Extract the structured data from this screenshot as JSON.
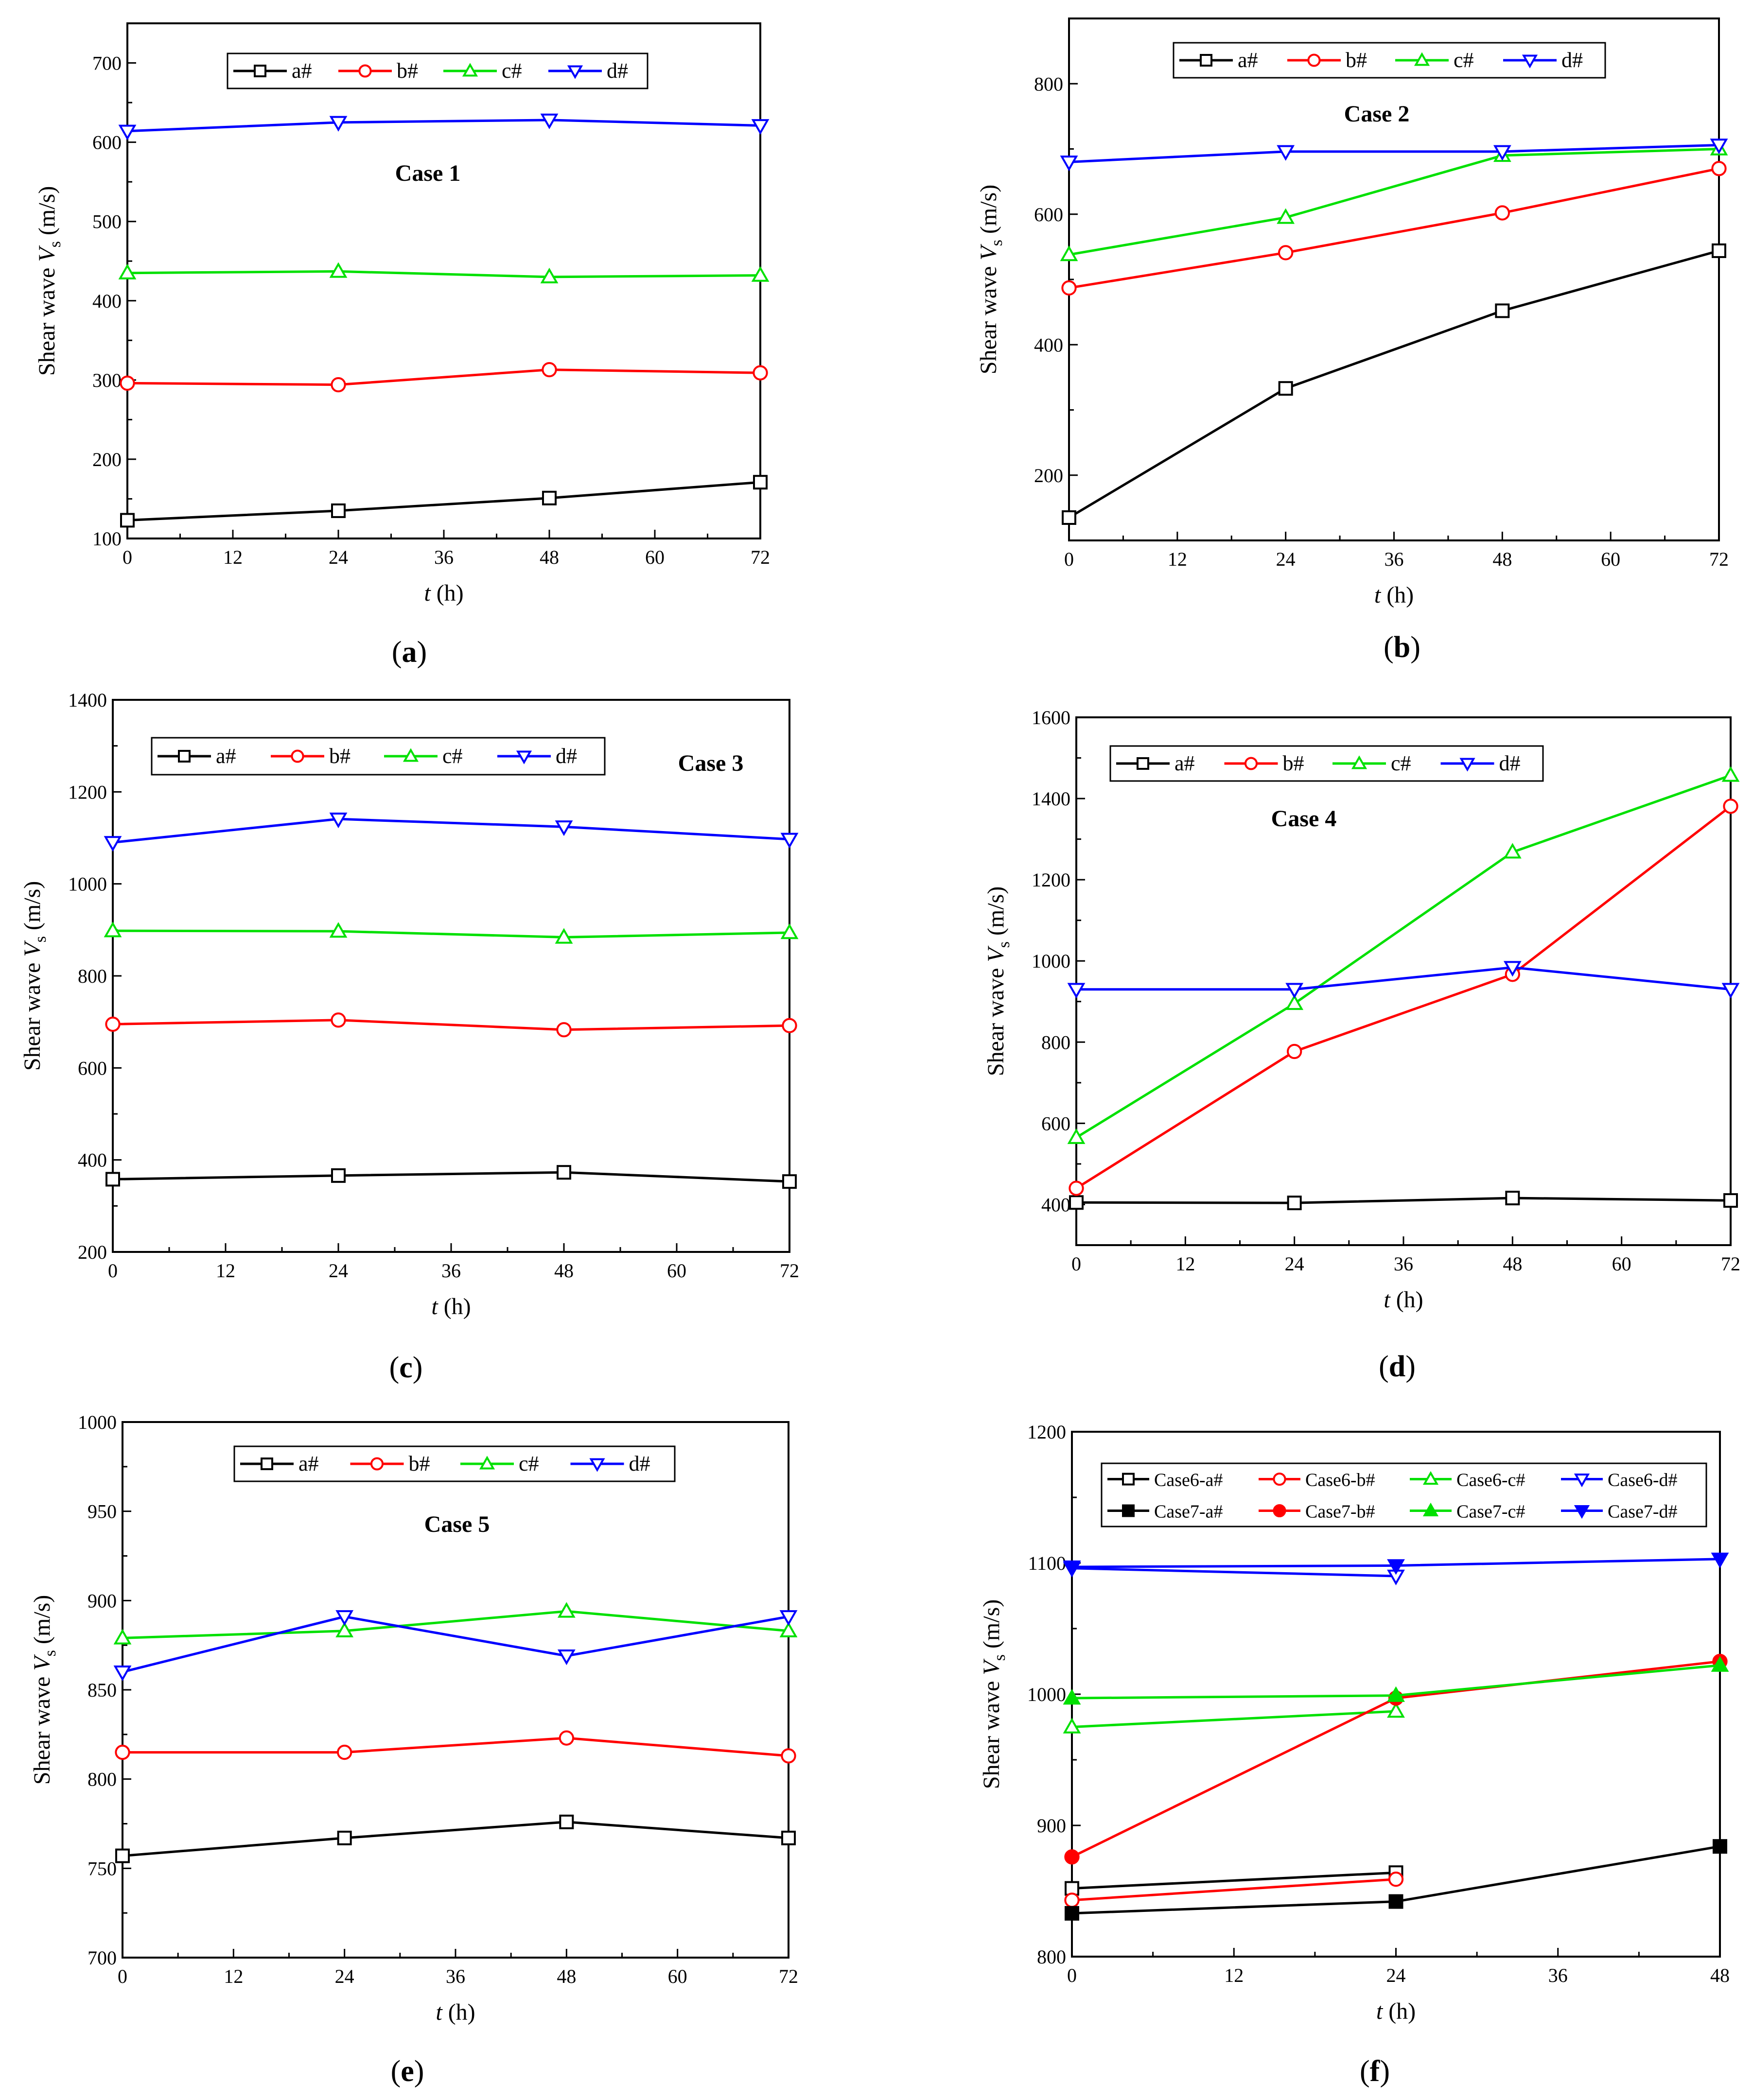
{
  "colors": {
    "a": "#000000",
    "b": "#ff0000",
    "c": "#00e000",
    "d": "#0000ff"
  },
  "charts": [
    {
      "id": "a",
      "panel_label": "a",
      "case_label": "Case 1",
      "xlabel_var": "t",
      "xlabel_unit": " (h)",
      "ylabel_main": "Shear wave ",
      "ylabel_var": "V",
      "ylabel_sub": "s",
      "ylabel_unit": " (m/s)",
      "xlim": [
        0,
        72
      ],
      "xticks": [
        0,
        12,
        24,
        36,
        48,
        60,
        72
      ],
      "ylim": [
        100,
        750
      ],
      "yticks": [
        100,
        200,
        300,
        400,
        500,
        600,
        700
      ],
      "x": [
        0,
        24,
        48,
        72
      ],
      "series": [
        {
          "name": "a#",
          "color": "#000000",
          "marker": "square",
          "values": [
            123,
            135,
            151,
            171
          ]
        },
        {
          "name": "b#",
          "color": "#ff0000",
          "marker": "circle",
          "values": [
            296,
            294,
            313,
            309
          ]
        },
        {
          "name": "c#",
          "color": "#00e000",
          "marker": "triangle-up",
          "values": [
            435,
            437,
            430,
            432
          ]
        },
        {
          "name": "d#",
          "color": "#0000ff",
          "marker": "triangle-down",
          "values": [
            614,
            625,
            628,
            621
          ]
        }
      ]
    },
    {
      "id": "b",
      "panel_label": "b",
      "case_label": "Case 2",
      "xlabel_var": "t",
      "xlabel_unit": " (h)",
      "ylabel_main": "Shear wave ",
      "ylabel_var": "V",
      "ylabel_sub": "s",
      "ylabel_unit": " (m/s)",
      "xlim": [
        0,
        72
      ],
      "xticks": [
        0,
        12,
        24,
        36,
        48,
        60,
        72
      ],
      "ylim": [
        100,
        900
      ],
      "yticks": [
        200,
        400,
        600,
        800
      ],
      "x": [
        0,
        24,
        48,
        72
      ],
      "series": [
        {
          "name": "a#",
          "color": "#000000",
          "marker": "square",
          "values": [
            135,
            333,
            452,
            544
          ]
        },
        {
          "name": "b#",
          "color": "#ff0000",
          "marker": "circle",
          "values": [
            487,
            541,
            602,
            670
          ]
        },
        {
          "name": "c#",
          "color": "#00e000",
          "marker": "triangle-up",
          "values": [
            538,
            595,
            690,
            700
          ]
        },
        {
          "name": "d#",
          "color": "#0000ff",
          "marker": "triangle-down",
          "values": [
            680,
            696,
            696,
            706
          ]
        }
      ]
    },
    {
      "id": "c",
      "panel_label": "c",
      "case_label": "Case 3",
      "xlabel_var": "t",
      "xlabel_unit": " (h)",
      "ylabel_main": "Shear wave ",
      "ylabel_var": "V",
      "ylabel_sub": "s",
      "ylabel_unit": " (m/s)",
      "xlim": [
        0,
        72
      ],
      "xticks": [
        0,
        12,
        24,
        36,
        48,
        60,
        72
      ],
      "ylim": [
        200,
        1400
      ],
      "yticks": [
        200,
        400,
        600,
        800,
        1000,
        1200,
        1400
      ],
      "x": [
        0,
        24,
        48,
        72
      ],
      "series": [
        {
          "name": "a#",
          "color": "#000000",
          "marker": "square",
          "values": [
            358,
            366,
            373,
            353
          ]
        },
        {
          "name": "b#",
          "color": "#ff0000",
          "marker": "circle",
          "values": [
            695,
            704,
            683,
            692
          ]
        },
        {
          "name": "c#",
          "color": "#00e000",
          "marker": "triangle-up",
          "values": [
            898,
            897,
            884,
            894
          ]
        },
        {
          "name": "d#",
          "color": "#0000ff",
          "marker": "triangle-down",
          "values": [
            1090,
            1141,
            1124,
            1097
          ]
        }
      ]
    },
    {
      "id": "d",
      "panel_label": "d",
      "case_label": "Case 4",
      "xlabel_var": "t",
      "xlabel_unit": " (h)",
      "ylabel_main": "Shear wave ",
      "ylabel_var": "V",
      "ylabel_sub": "s",
      "ylabel_unit": " (m/s)",
      "xlim": [
        0,
        72
      ],
      "xticks": [
        0,
        12,
        24,
        36,
        48,
        60,
        72
      ],
      "ylim": [
        300,
        1600
      ],
      "yticks": [
        400,
        600,
        800,
        1000,
        1200,
        1400,
        1600
      ],
      "x": [
        0,
        24,
        48,
        72
      ],
      "series": [
        {
          "name": "a#",
          "color": "#000000",
          "marker": "square",
          "values": [
            405,
            404,
            416,
            410
          ]
        },
        {
          "name": "b#",
          "color": "#ff0000",
          "marker": "circle",
          "values": [
            440,
            777,
            967,
            1381
          ]
        },
        {
          "name": "c#",
          "color": "#00e000",
          "marker": "triangle-up",
          "values": [
            565,
            895,
            1268,
            1457
          ]
        },
        {
          "name": "d#",
          "color": "#0000ff",
          "marker": "triangle-down",
          "values": [
            930,
            930,
            984,
            930
          ]
        }
      ]
    },
    {
      "id": "e",
      "panel_label": "e",
      "case_label": "Case 5",
      "xlabel_var": "t",
      "xlabel_unit": " (h)",
      "ylabel_main": "Shear wave ",
      "ylabel_var": "V",
      "ylabel_sub": "s",
      "ylabel_unit": " (m/s)",
      "xlim": [
        0,
        72
      ],
      "xticks": [
        0,
        12,
        24,
        36,
        48,
        60,
        72
      ],
      "ylim": [
        700,
        1000
      ],
      "yticks": [
        700,
        750,
        800,
        850,
        900,
        950,
        1000
      ],
      "x": [
        0,
        24,
        48,
        72
      ],
      "series": [
        {
          "name": "a#",
          "color": "#000000",
          "marker": "square",
          "values": [
            757,
            767,
            776,
            767
          ]
        },
        {
          "name": "b#",
          "color": "#ff0000",
          "marker": "circle",
          "values": [
            815,
            815,
            823,
            813
          ]
        },
        {
          "name": "c#",
          "color": "#00e000",
          "marker": "triangle-up",
          "values": [
            879,
            883,
            894,
            883
          ]
        },
        {
          "name": "d#",
          "color": "#0000ff",
          "marker": "triangle-down",
          "values": [
            860,
            891,
            869,
            891
          ]
        }
      ]
    },
    {
      "id": "f",
      "panel_label": "f",
      "case_label": "",
      "xlabel_var": "t",
      "xlabel_unit": " (h)",
      "ylabel_main": "Shear wave ",
      "ylabel_var": "V",
      "ylabel_sub": "s",
      "ylabel_unit": " (m/s)",
      "xlim": [
        0,
        48
      ],
      "xticks": [
        0,
        12,
        24,
        36,
        48
      ],
      "ylim": [
        800,
        1200
      ],
      "yticks": [
        800,
        900,
        1000,
        1100,
        1200
      ],
      "legend_columns": 4,
      "series": [
        {
          "name": "Case6-a#",
          "color": "#000000",
          "marker": "square",
          "x": [
            0,
            24
          ],
          "values": [
            852,
            864
          ]
        },
        {
          "name": "Case6-b#",
          "color": "#ff0000",
          "marker": "circle",
          "x": [
            0,
            24
          ],
          "values": [
            843,
            859
          ]
        },
        {
          "name": "Case6-c#",
          "color": "#00e000",
          "marker": "triangle-up",
          "x": [
            0,
            24
          ],
          "values": [
            975,
            987
          ]
        },
        {
          "name": "Case6-d#",
          "color": "#0000ff",
          "marker": "triangle-down",
          "x": [
            0,
            24
          ],
          "values": [
            1096,
            1090
          ]
        },
        {
          "name": "Case7-a#",
          "color": "#000000",
          "marker": "square-filled",
          "x": [
            0,
            24,
            48
          ],
          "values": [
            833,
            842,
            884
          ]
        },
        {
          "name": "Case7-b#",
          "color": "#ff0000",
          "marker": "circle-filled",
          "x": [
            0,
            24,
            48
          ],
          "values": [
            876,
            997,
            1025
          ]
        },
        {
          "name": "Case7-c#",
          "color": "#00e000",
          "marker": "triangle-up-filled",
          "x": [
            0,
            24,
            48
          ],
          "values": [
            997,
            999,
            1022
          ]
        },
        {
          "name": "Case7-d#",
          "color": "#0000ff",
          "marker": "triangle-down-filled",
          "x": [
            0,
            24,
            48
          ],
          "values": [
            1097,
            1098,
            1103
          ]
        }
      ]
    }
  ]
}
